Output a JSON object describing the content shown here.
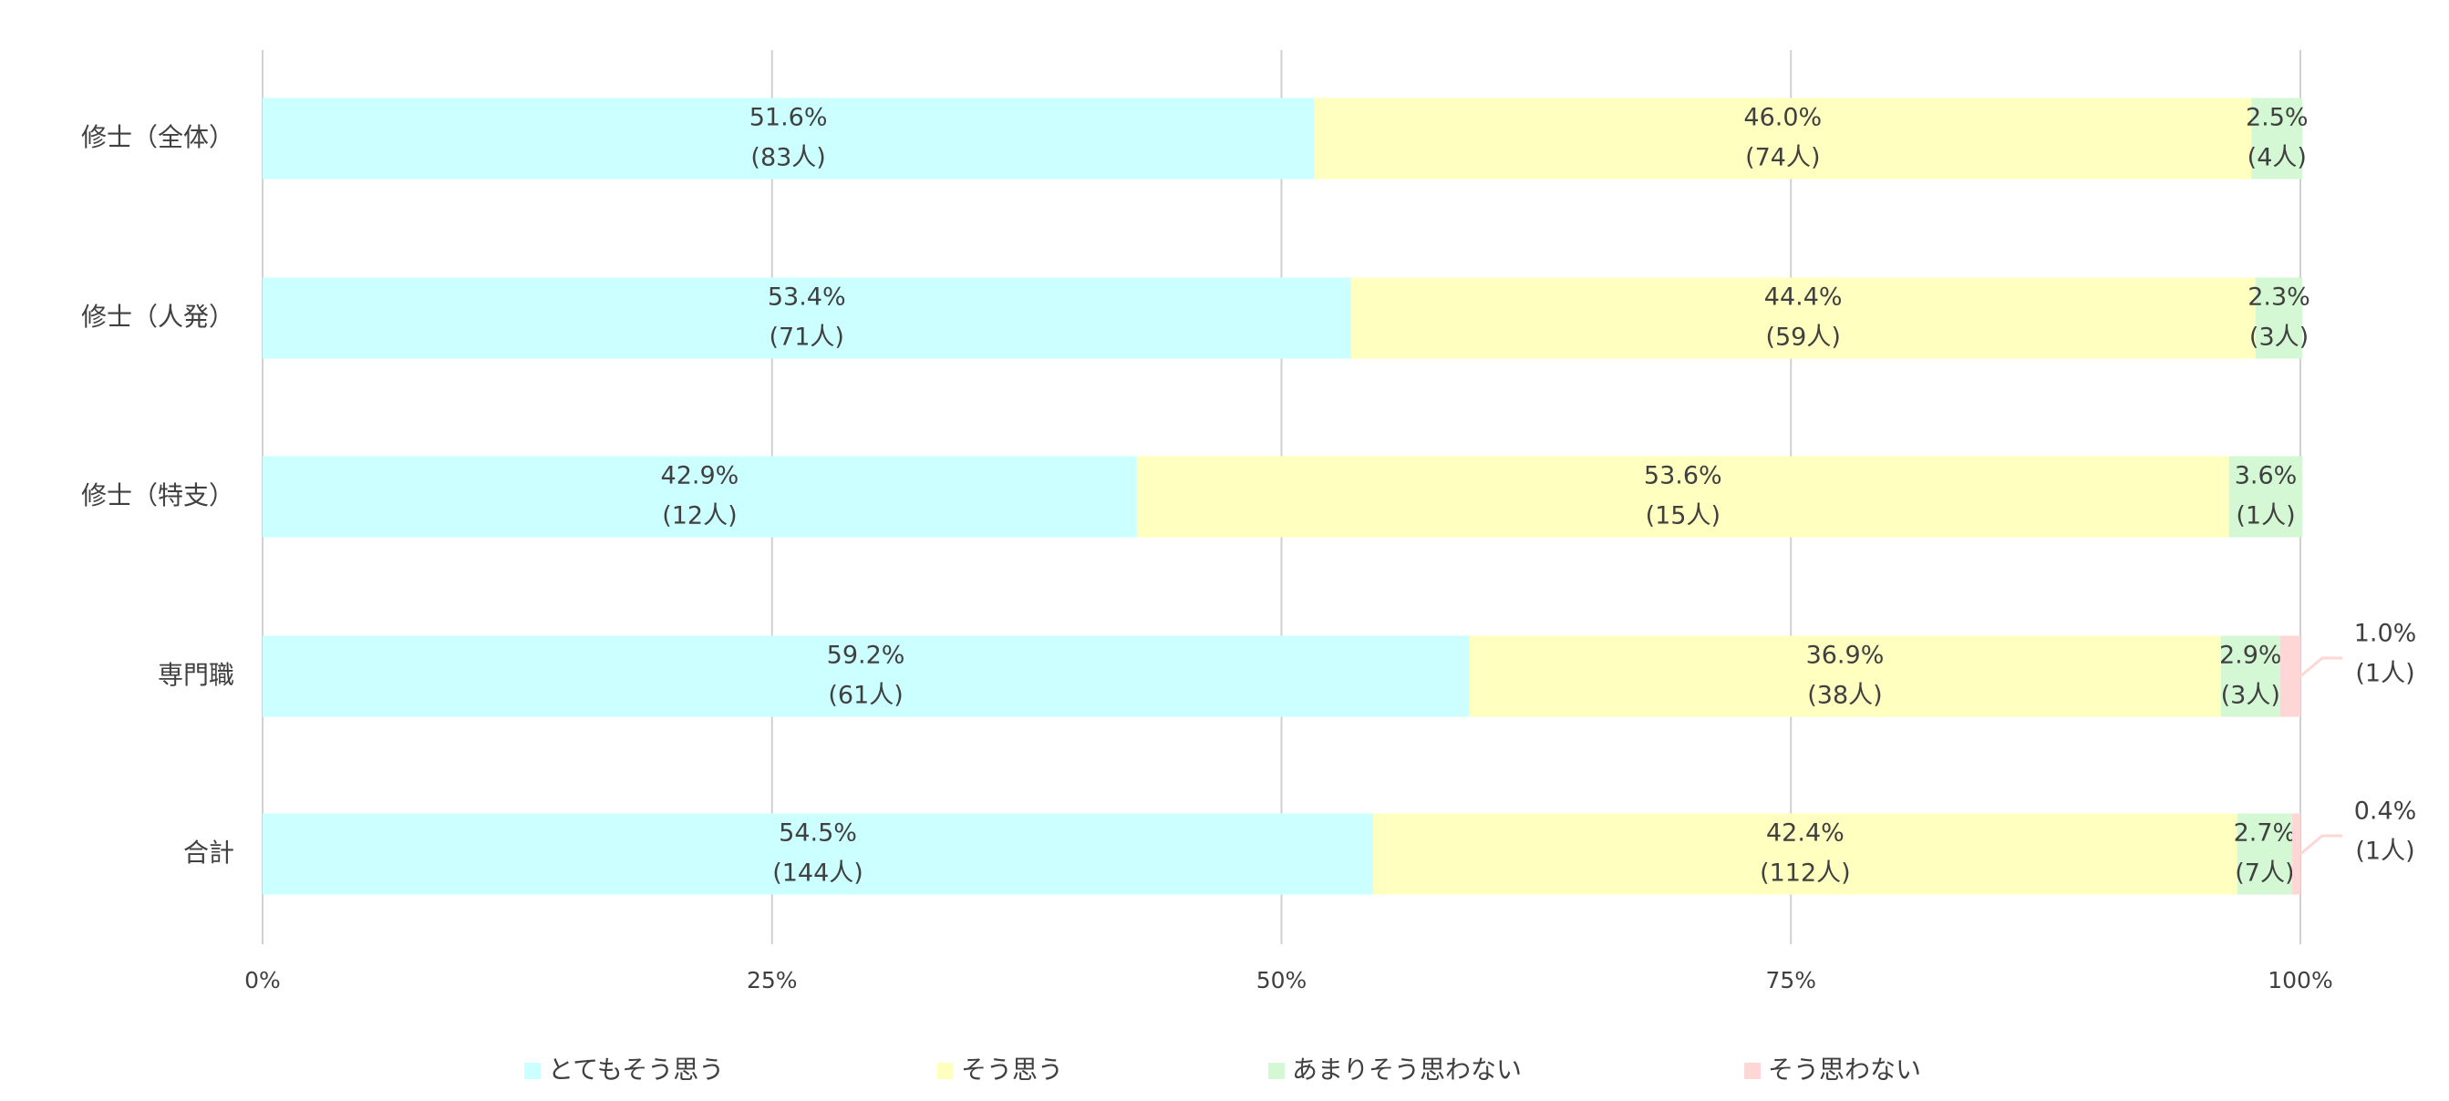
{
  "chart_data": {
    "type": "stacked_bar_horizontal",
    "categories": [
      "修士（全体）",
      "修士（人発）",
      "修士（特支）",
      "専門職",
      "合計"
    ],
    "series": [
      {
        "name": "とてもそう思う",
        "color": "#ccffff",
        "values": [
          51.6,
          53.4,
          42.9,
          59.2,
          54.5
        ],
        "value_labels": [
          "51.6%",
          "53.4%",
          "42.9%",
          "59.2%",
          "54.5%"
        ],
        "count_labels": [
          "(83人)",
          "(71人)",
          "(12人)",
          "(61人)",
          "(144人)"
        ]
      },
      {
        "name": "そう思う",
        "color": "#ffffc0",
        "values": [
          46.0,
          44.4,
          53.6,
          36.9,
          42.4
        ],
        "value_labels": [
          "46.0%",
          "44.4%",
          "53.6%",
          "36.9%",
          "42.4%"
        ],
        "count_labels": [
          "(74人)",
          "(59人)",
          "(15人)",
          "(38人)",
          "(112人)"
        ]
      },
      {
        "name": "あまりそう思わない",
        "color": "#d4f7d4",
        "values": [
          2.5,
          2.3,
          3.6,
          2.9,
          2.7
        ],
        "value_labels": [
          "2.5%",
          "2.3%",
          "3.6%",
          "2.9%",
          "2.7%"
        ],
        "count_labels": [
          "(4人)",
          "(3人)",
          "(1人)",
          "(3人)",
          "(7人)"
        ]
      },
      {
        "name": "そう思わない",
        "color": "#ffd6d6",
        "values": [
          0,
          0,
          0,
          1.0,
          0.4
        ],
        "value_labels": [
          null,
          null,
          null,
          "1.0%",
          "0.4%"
        ],
        "count_labels": [
          null,
          null,
          null,
          "(1人)",
          "(1人)"
        ]
      }
    ],
    "xlim": [
      0,
      100
    ],
    "xticks": [
      {
        "value": 0,
        "label": "0%"
      },
      {
        "value": 25,
        "label": "25%"
      },
      {
        "value": 50,
        "label": "50%"
      },
      {
        "value": 75,
        "label": "75%"
      },
      {
        "value": 100,
        "label": "100%"
      }
    ],
    "grid": true,
    "legend": "bottom"
  }
}
